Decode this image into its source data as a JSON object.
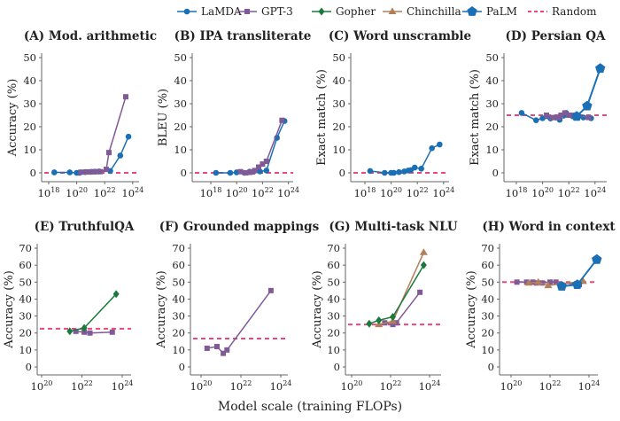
{
  "legend": [
    {
      "name": "LaMDA",
      "color": "#1a6fb5",
      "marker": "circle"
    },
    {
      "name": "GPT-3",
      "color": "#7f5a96",
      "marker": "square"
    },
    {
      "name": "Gopher",
      "color": "#1a7a3c",
      "marker": "diamond"
    },
    {
      "name": "Chinchilla",
      "color": "#b0805a",
      "marker": "triangle"
    },
    {
      "name": "PaLM",
      "color": "#1a6fb5",
      "marker": "pentagon"
    },
    {
      "name": "Random",
      "color": "#f0457a",
      "marker": "dashed-line"
    }
  ],
  "xlabel": "Model scale (training FLOPs)",
  "chart_data": [
    {
      "type": "line",
      "title": "(A) Mod. arithmetic",
      "ylabel": "Accuracy (%)",
      "xscale": "log",
      "xticks": [
        "10^18",
        "10^20",
        "10^22",
        "10^24"
      ],
      "ylim": [
        0,
        50
      ],
      "yticks": [
        0,
        10,
        20,
        30,
        40,
        50
      ],
      "random": 0,
      "series": [
        {
          "name": "LaMDA",
          "values": [
            [
              2.5e+18,
              0.2
            ],
            [
              3.2e+19,
              0.2
            ],
            [
              1e+20,
              0
            ],
            [
              1.6e+20,
              0
            ],
            [
              4e+20,
              0.3
            ],
            [
              1e+21,
              0.4
            ],
            [
              2e+21,
              0.5
            ],
            [
              4e+21,
              0.6
            ],
            [
              2.5e+22,
              0.8
            ],
            [
              1.3e+23,
              7.5
            ],
            [
              5e+23,
              15.7
            ]
          ]
        },
        {
          "name": "GPT-3",
          "values": [
            [
              2e+20,
              0.3
            ],
            [
              5e+20,
              0.4
            ],
            [
              1e+21,
              0.4
            ],
            [
              1.6e+21,
              0.5
            ],
            [
              2.5e+21,
              0.5
            ],
            [
              5e+21,
              0.5
            ],
            [
              1.3e+22,
              1.5
            ],
            [
              2e+22,
              8.8
            ],
            [
              3.2e+23,
              33
            ]
          ]
        }
      ]
    },
    {
      "type": "line",
      "title": "(B) IPA transliterate",
      "ylabel": "BLEU (%)",
      "xscale": "log",
      "xticks": [
        "10^18",
        "10^20",
        "10^22",
        "10^24"
      ],
      "ylim": [
        0,
        50
      ],
      "yticks": [
        0,
        10,
        20,
        30,
        40,
        50
      ],
      "random": 0,
      "series": [
        {
          "name": "LaMDA",
          "values": [
            [
              2.5e+18,
              0
            ],
            [
              3.2e+19,
              0
            ],
            [
              1e+20,
              0.2
            ],
            [
              4e+20,
              0
            ],
            [
              1e+21,
              0.5
            ],
            [
              2e+21,
              0.5
            ],
            [
              6.3e+21,
              0.6
            ],
            [
              2e+22,
              1
            ],
            [
              1.3e+23,
              15.2
            ],
            [
              5e+23,
              22.5
            ]
          ]
        },
        {
          "name": "GPT-3",
          "values": [
            [
              2e+20,
              0.5
            ],
            [
              5e+20,
              0
            ],
            [
              1e+21,
              0.2
            ],
            [
              1.6e+21,
              0.4
            ],
            [
              2.5e+21,
              1
            ],
            [
              5e+21,
              2.5
            ],
            [
              1e+22,
              3.8
            ],
            [
              2e+22,
              5
            ],
            [
              3.2e+23,
              22.8
            ]
          ]
        }
      ]
    },
    {
      "type": "line",
      "title": "(C) Word unscramble",
      "ylabel": "Exact match (%)",
      "xscale": "log",
      "xticks": [
        "10^18",
        "10^20",
        "10^22",
        "10^24"
      ],
      "ylim": [
        0,
        50
      ],
      "yticks": [
        0,
        10,
        20,
        30,
        40,
        50
      ],
      "random": 0,
      "series": [
        {
          "name": "LaMDA",
          "values": [
            [
              2.5e+18,
              0.8
            ],
            [
              3.2e+19,
              0
            ],
            [
              1e+20,
              0
            ],
            [
              1.6e+20,
              0
            ],
            [
              4e+20,
              0.3
            ],
            [
              1e+21,
              0.6
            ],
            [
              2e+21,
              1
            ],
            [
              3.2e+21,
              1.2
            ],
            [
              6.3e+21,
              2.3
            ],
            [
              2e+22,
              1.8
            ],
            [
              1.3e+23,
              10.7
            ],
            [
              5e+23,
              12.3
            ]
          ]
        }
      ]
    },
    {
      "type": "line",
      "title": "(D) Persian QA",
      "ylabel": "Exact match (%)",
      "xscale": "log",
      "xticks": [
        "10^18",
        "10^20",
        "10^22",
        "10^24"
      ],
      "ylim": [
        0,
        50
      ],
      "yticks": [
        0,
        10,
        20,
        30,
        40,
        50
      ],
      "random": 25,
      "series": [
        {
          "name": "LaMDA",
          "values": [
            [
              2.5e+18,
              26
            ],
            [
              3.2e+19,
              22.8
            ],
            [
              1e+20,
              23.7
            ],
            [
              4e+20,
              23.6
            ],
            [
              1e+21,
              24
            ],
            [
              2e+21,
              23
            ],
            [
              4e+21,
              24.8
            ],
            [
              6.3e+21,
              26
            ],
            [
              2e+22,
              24.5
            ],
            [
              1.3e+23,
              24
            ],
            [
              5e+23,
              23.7
            ]
          ]
        },
        {
          "name": "GPT-3",
          "values": [
            [
              2e+20,
              25
            ],
            [
              5e+20,
              24
            ],
            [
              1e+21,
              24
            ],
            [
              1.6e+21,
              24
            ],
            [
              2.5e+21,
              25
            ],
            [
              5e+21,
              26
            ],
            [
              1e+22,
              25
            ],
            [
              2e+22,
              25
            ],
            [
              3.2e+23,
              24
            ]
          ]
        },
        {
          "name": "PaLM",
          "values": [
            [
              4e+22,
              24.5
            ],
            [
              2.5e+23,
              29
            ],
            [
              2.5e+24,
              45.3
            ]
          ]
        }
      ]
    },
    {
      "type": "line",
      "title": "(E) TruthfulQA",
      "ylabel": "Accuracy (%)",
      "xscale": "log",
      "xticks": [
        "10^20",
        "10^22",
        "10^24"
      ],
      "ylim": [
        0,
        70
      ],
      "yticks": [
        0,
        10,
        20,
        30,
        40,
        50,
        60,
        70
      ],
      "random": 22.5,
      "series": [
        {
          "name": "GPT-3",
          "values": [
            [
              5e+21,
              21
            ],
            [
              1.3e+22,
              20.5
            ],
            [
              2.5e+22,
              20
            ],
            [
              3.2e+23,
              20.5
            ]
          ]
        },
        {
          "name": "Gopher",
          "values": [
            [
              2.5e+21,
              21
            ],
            [
              1.3e+22,
              23
            ],
            [
              5e+23,
              43
            ]
          ]
        }
      ]
    },
    {
      "type": "line",
      "title": "(F) Grounded mappings",
      "ylabel": "Accuracy (%)",
      "xscale": "log",
      "xticks": [
        "10^20",
        "10^22",
        "10^24"
      ],
      "ylim": [
        0,
        70
      ],
      "yticks": [
        0,
        10,
        20,
        30,
        40,
        50,
        60,
        70
      ],
      "random": 16.7,
      "series": [
        {
          "name": "GPT-3",
          "values": [
            [
              2e+20,
              11
            ],
            [
              6.3e+20,
              12
            ],
            [
              1.3e+21,
              8
            ],
            [
              2e+21,
              10
            ],
            [
              3.2e+23,
              45
            ]
          ]
        }
      ]
    },
    {
      "type": "line",
      "title": "(G) Multi-task NLU",
      "ylabel": "Accuracy (%)",
      "xscale": "log",
      "xticks": [
        "10^20",
        "10^22",
        "10^24"
      ],
      "ylim": [
        0,
        70
      ],
      "yticks": [
        0,
        10,
        20,
        30,
        40,
        50,
        60,
        70
      ],
      "random": 25,
      "series": [
        {
          "name": "GPT-3",
          "values": [
            [
              5e+21,
              26
            ],
            [
              1.3e+22,
              25
            ],
            [
              2e+22,
              26
            ],
            [
              3.2e+23,
              44
            ]
          ]
        },
        {
          "name": "Chinchilla",
          "values": [
            [
              2.5e+21,
              25
            ],
            [
              1.3e+22,
              27
            ],
            [
              5e+23,
              67.5
            ]
          ]
        },
        {
          "name": "Gopher",
          "values": [
            [
              8e+20,
              25.5
            ],
            [
              2.5e+21,
              27.5
            ],
            [
              1.3e+22,
              29.5
            ],
            [
              5e+23,
              60
            ]
          ]
        }
      ]
    },
    {
      "type": "line",
      "title": "(H) Word in context",
      "ylabel": "Accuracy (%)",
      "xscale": "log",
      "xticks": [
        "10^20",
        "10^22",
        "10^24"
      ],
      "ylim": [
        0,
        70
      ],
      "yticks": [
        0,
        10,
        20,
        30,
        40,
        50,
        60,
        70
      ],
      "random": 50,
      "series": [
        {
          "name": "GPT-3",
          "values": [
            [
              2e+20,
              50
            ],
            [
              6.3e+20,
              50
            ],
            [
              1.3e+21,
              50
            ],
            [
              2e+21,
              49.5
            ],
            [
              4e+21,
              49.5
            ],
            [
              1e+22,
              50
            ],
            [
              2e+22,
              50
            ],
            [
              3.2e+23,
              48.5
            ]
          ]
        },
        {
          "name": "Chinchilla",
          "values": [
            [
              8e+20,
              49.5
            ],
            [
              2.5e+21,
              50
            ],
            [
              8e+21,
              48
            ],
            [
              5e+23,
              50.5
            ]
          ]
        },
        {
          "name": "PaLM",
          "values": [
            [
              4e+22,
              47.5
            ],
            [
              2.5e+23,
              48.5
            ],
            [
              2.5e+24,
              63.3
            ]
          ]
        }
      ]
    }
  ]
}
